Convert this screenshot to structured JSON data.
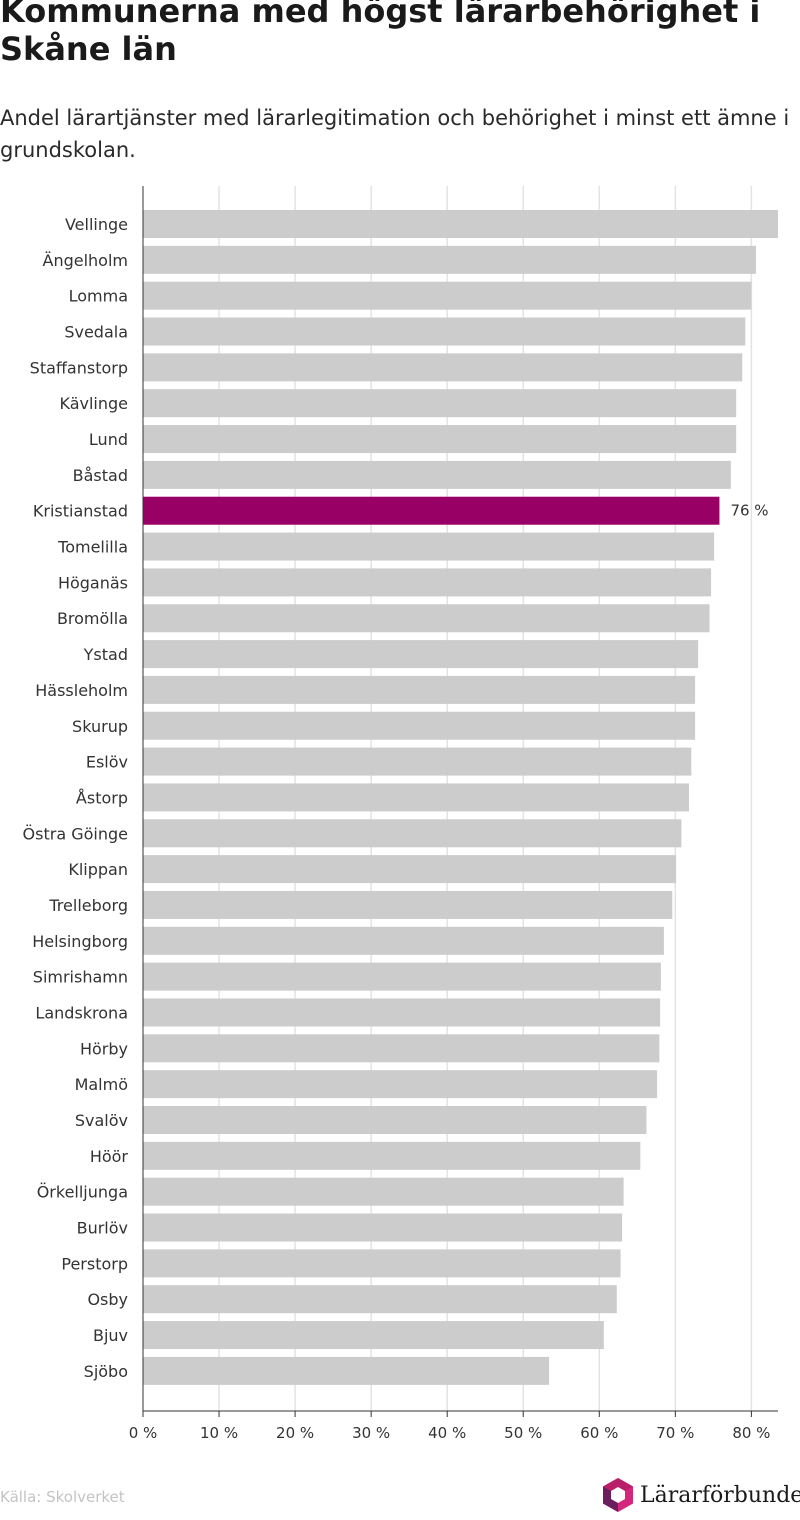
{
  "header": {
    "title": "Kommunerna med högst lärarbehörighet i Skåne län",
    "subtitle": "Andel lärartjänster med lärarlegitimation och behörighet i minst ett ämne i grundskolan."
  },
  "footer": {
    "source": "Källa: Skolverket",
    "brand": "Lärarförbundet"
  },
  "colors": {
    "bar": "#cccccc",
    "highlight": "#990066",
    "grid": "#e3e3e3",
    "axis": "#333333",
    "logo_pink": "#d4267a",
    "logo_purple": "#6b1f5e"
  },
  "chart_data": {
    "type": "bar",
    "orientation": "horizontal",
    "categories": [
      "Vellinge",
      "Ängelholm",
      "Lomma",
      "Svedala",
      "Staffanstorp",
      "Kävlinge",
      "Lund",
      "Båstad",
      "Kristianstad",
      "Tomelilla",
      "Höganäs",
      "Bromölla",
      "Ystad",
      "Hässleholm",
      "Skurup",
      "Eslöv",
      "Åstorp",
      "Östra Göinge",
      "Klippan",
      "Trelleborg",
      "Helsingborg",
      "Simrishamn",
      "Landskrona",
      "Hörby",
      "Malmö",
      "Svalöv",
      "Höör",
      "Örkelljunga",
      "Burlöv",
      "Perstorp",
      "Osby",
      "Bjuv",
      "Sjöbo"
    ],
    "values": [
      83.5,
      80.6,
      80.0,
      79.2,
      78.8,
      78.0,
      78.0,
      77.3,
      75.8,
      75.1,
      74.7,
      74.5,
      73.0,
      72.6,
      72.6,
      72.1,
      71.8,
      70.8,
      70.1,
      69.6,
      68.5,
      68.1,
      68.0,
      67.9,
      67.6,
      66.2,
      65.4,
      63.2,
      63.0,
      62.8,
      62.3,
      60.6,
      53.4
    ],
    "highlight": {
      "category": "Kristianstad",
      "label": "76 %"
    },
    "xlim": [
      0,
      83.5
    ],
    "xticks": [
      0,
      10,
      20,
      30,
      40,
      50,
      60,
      70,
      80
    ],
    "xtick_labels": [
      "0 %",
      "10 %",
      "20 %",
      "30 %",
      "40 %",
      "50 %",
      "60 %",
      "70 %",
      "80 %"
    ],
    "grid": true,
    "legend": "none"
  }
}
